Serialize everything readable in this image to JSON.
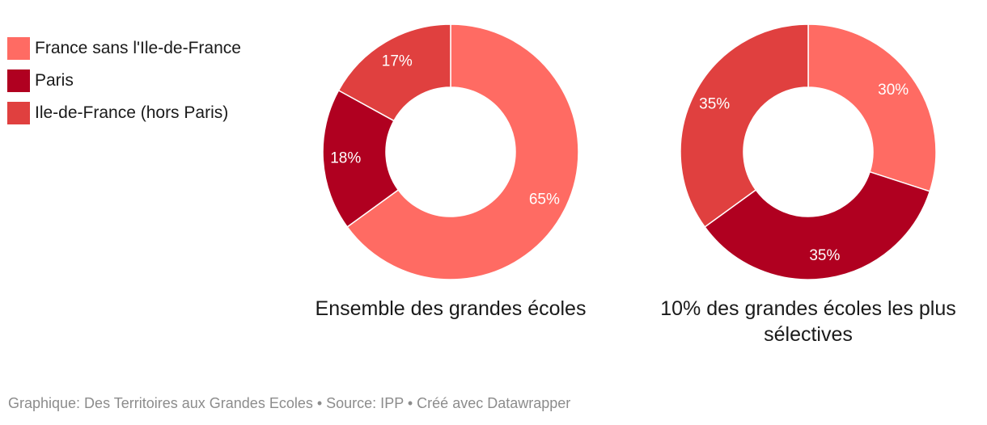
{
  "legend": [
    {
      "label": "France sans l'Ile-de-France",
      "color": "#ff6b63"
    },
    {
      "label": "Paris",
      "color": "#b00020"
    },
    {
      "label": "Ile-de-France (hors Paris)",
      "color": "#e0403f"
    }
  ],
  "footer": {
    "text": "Graphique: Des Territoires aux Grandes Ecoles • Source: IPP • Créé avec Datawrapper"
  },
  "chart_data": [
    {
      "type": "pie",
      "variant": "donut",
      "title": "Ensemble des grandes écoles",
      "categories": [
        "France sans l'Ile-de-France",
        "Paris",
        "Ile-de-France (hors Paris)"
      ],
      "values": [
        65,
        18,
        17
      ],
      "labels": [
        "65%",
        "18%",
        "17%"
      ],
      "colors": [
        "#ff6b63",
        "#b00020",
        "#e0403f"
      ]
    },
    {
      "type": "pie",
      "variant": "donut",
      "title": "10% des grandes écoles les plus sélectives",
      "categories": [
        "France sans l'Ile-de-France",
        "Paris",
        "Ile-de-France (hors Paris)"
      ],
      "values": [
        30,
        35,
        35
      ],
      "labels": [
        "30%",
        "35%",
        "35%"
      ],
      "colors": [
        "#ff6b63",
        "#b00020",
        "#e0403f"
      ]
    }
  ]
}
